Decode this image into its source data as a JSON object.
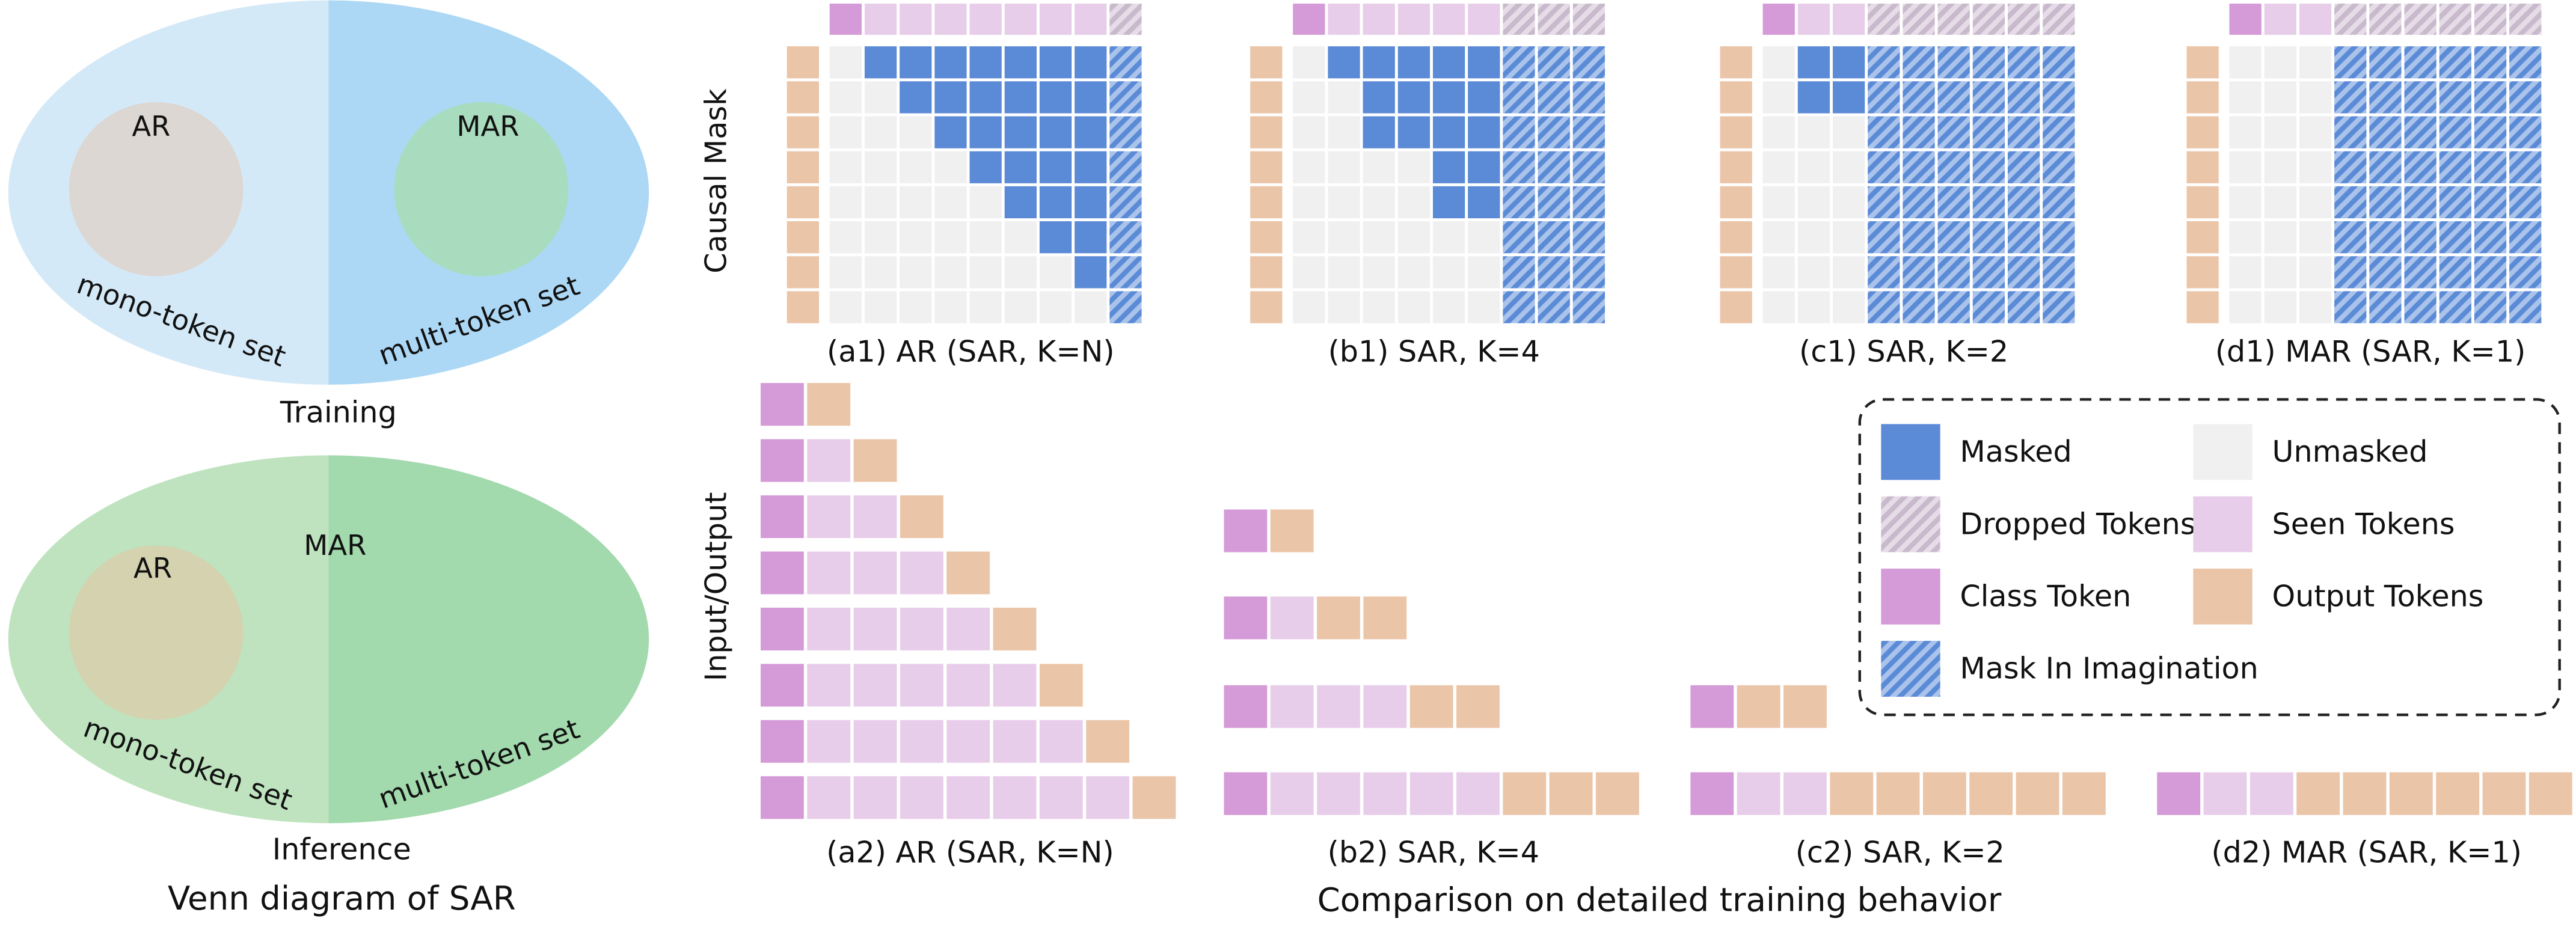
{
  "venn": {
    "training": {
      "ar": "AR",
      "mar": "MAR",
      "mono": "mono-token set",
      "multi": "multi-token set",
      "caption": "Training"
    },
    "inference": {
      "ar": "AR",
      "mar": "MAR",
      "mono": "mono-token set",
      "multi": "multi-token set",
      "caption": "Inference"
    },
    "title": "Venn diagram of SAR"
  },
  "comparison": {
    "row_labels": [
      "Causal Mask",
      "Input/Output"
    ],
    "mask_captions": [
      "(a1) AR (SAR, K=N)",
      "(b1) SAR, K=4",
      "(c1) SAR, K=2",
      "(d1) MAR (SAR, K=1)"
    ],
    "io_captions": [
      "(a2) AR (SAR, K=N)",
      "(b2) SAR, K=4",
      "(c2) SAR, K=2",
      "(d2) MAR (SAR, K=1)"
    ],
    "title": "Comparison on detailed training behavior"
  },
  "legend": [
    "Masked",
    "Unmasked",
    "Dropped Tokens",
    "Seen Tokens",
    "Class Token",
    "Output Tokens",
    "Mask In Imagination"
  ]
}
